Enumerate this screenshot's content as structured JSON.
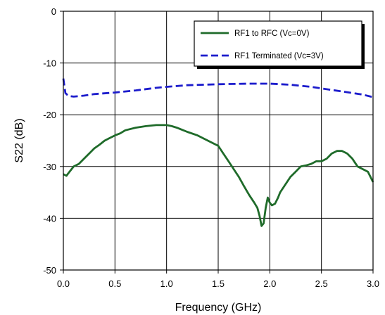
{
  "chart_data": {
    "type": "line",
    "title": "",
    "xlabel": "Frequency (GHz)",
    "ylabel": "S22 (dB)",
    "xlim": [
      0.0,
      3.0
    ],
    "ylim": [
      -50,
      0
    ],
    "x_ticks": [
      "0.0",
      "0.5",
      "1.0",
      "1.5",
      "2.0",
      "2.5",
      "3.0"
    ],
    "y_ticks": [
      "0",
      "-10",
      "-20",
      "-30",
      "-40",
      "-50"
    ],
    "grid": true,
    "legend_position": "top-right",
    "series": [
      {
        "name": "RF1 to RFC (Vc=0V)",
        "color": "#1f6b2a",
        "dash": "solid",
        "x": [
          0.0,
          0.03,
          0.06,
          0.1,
          0.15,
          0.2,
          0.25,
          0.3,
          0.35,
          0.4,
          0.45,
          0.5,
          0.55,
          0.6,
          0.7,
          0.8,
          0.9,
          1.0,
          1.05,
          1.1,
          1.2,
          1.3,
          1.4,
          1.5,
          1.55,
          1.6,
          1.65,
          1.7,
          1.75,
          1.8,
          1.85,
          1.88,
          1.9,
          1.92,
          1.94,
          1.96,
          1.98,
          2.0,
          2.02,
          2.05,
          2.08,
          2.1,
          2.15,
          2.2,
          2.25,
          2.3,
          2.35,
          2.4,
          2.45,
          2.5,
          2.55,
          2.6,
          2.65,
          2.7,
          2.75,
          2.8,
          2.85,
          2.9,
          2.95,
          3.0
        ],
        "values": [
          -31.5,
          -31.8,
          -31.0,
          -30.0,
          -29.5,
          -28.5,
          -27.5,
          -26.5,
          -25.8,
          -25.0,
          -24.5,
          -24.0,
          -23.6,
          -23.0,
          -22.5,
          -22.2,
          -22.0,
          -22.0,
          -22.2,
          -22.5,
          -23.3,
          -24.0,
          -25.0,
          -26.0,
          -27.5,
          -29.0,
          -30.5,
          -32.0,
          -33.8,
          -35.5,
          -37.0,
          -38.0,
          -39.5,
          -41.5,
          -41.0,
          -38.0,
          -36.0,
          -37.0,
          -37.5,
          -37.2,
          -36.0,
          -35.0,
          -33.5,
          -32.0,
          -31.0,
          -30.0,
          -29.8,
          -29.5,
          -29.0,
          -29.0,
          -28.5,
          -27.5,
          -27.0,
          -27.0,
          -27.5,
          -28.5,
          -30.0,
          -30.5,
          -31.0,
          -33.0
        ]
      },
      {
        "name": "RF1 Terminated (Vc=3V)",
        "color": "#1c1ccc",
        "dash": "dashed",
        "x": [
          0.0,
          0.02,
          0.04,
          0.06,
          0.1,
          0.2,
          0.3,
          0.5,
          0.7,
          0.9,
          1.0,
          1.2,
          1.5,
          1.8,
          2.0,
          2.2,
          2.4,
          2.6,
          2.8,
          2.9,
          3.0
        ],
        "values": [
          -13.0,
          -15.8,
          -16.2,
          -16.4,
          -16.5,
          -16.3,
          -16.0,
          -15.7,
          -15.3,
          -14.8,
          -14.6,
          -14.3,
          -14.1,
          -14.0,
          -14.0,
          -14.2,
          -14.6,
          -15.2,
          -15.8,
          -16.1,
          -16.6
        ]
      }
    ]
  }
}
